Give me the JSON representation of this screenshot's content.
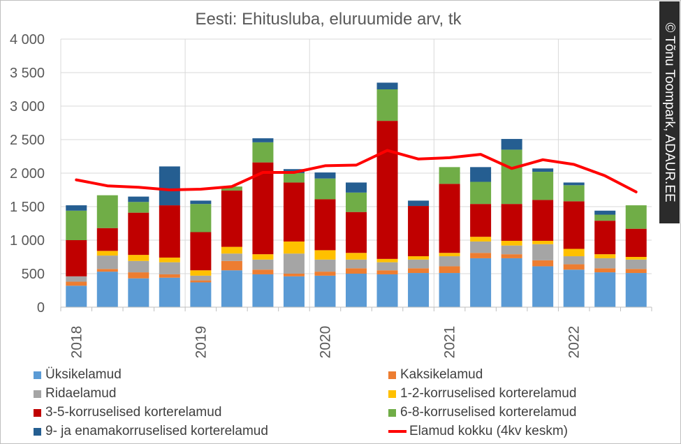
{
  "title": "Eesti: Ehitusluba, eluruumide arv, tk",
  "credit": "© Tõnu Toompark, ADAUR.EE",
  "chart_data": {
    "type": "bar",
    "stacked": true,
    "title": "Eesti: Ehitusluba, eluruumide arv, tk",
    "xlabel": "",
    "ylabel": "",
    "ylim": [
      0,
      4000
    ],
    "yticks": [
      0,
      500,
      1000,
      1500,
      2000,
      2500,
      3000,
      3500,
      4000
    ],
    "ytick_labels": [
      "0",
      "500",
      "1 000",
      "1 500",
      "2 000",
      "2 500",
      "3 000",
      "3 500",
      "4 000"
    ],
    "x_labels": [
      "2018",
      "2019",
      "2020",
      "2021",
      "2022"
    ],
    "grid": true,
    "legend_position": "bottom",
    "quarters": 19,
    "series": [
      {
        "name": "Üksikelamud",
        "color": "#5b9bd5",
        "values": [
          320,
          530,
          430,
          440,
          370,
          550,
          490,
          460,
          470,
          500,
          490,
          510,
          510,
          730,
          730,
          610,
          560,
          520,
          510
        ]
      },
      {
        "name": "Kaksikelamud",
        "color": "#ed7d31",
        "values": [
          60,
          40,
          90,
          50,
          30,
          140,
          70,
          40,
          60,
          80,
          60,
          70,
          100,
          80,
          60,
          90,
          80,
          60,
          60
        ]
      },
      {
        "name": "Ridaelamud",
        "color": "#a5a5a5",
        "values": [
          80,
          200,
          170,
          180,
          70,
          110,
          150,
          300,
          180,
          130,
          120,
          130,
          150,
          170,
          130,
          240,
          120,
          150,
          140
        ]
      },
      {
        "name": "1-2-korruselised korterelamud",
        "color": "#ffc000",
        "values": [
          0,
          70,
          90,
          70,
          80,
          100,
          80,
          180,
          140,
          100,
          50,
          50,
          50,
          70,
          70,
          50,
          110,
          60,
          40
        ]
      },
      {
        "name": "3-5-korruselised korterelamud",
        "color": "#c00000",
        "values": [
          540,
          340,
          630,
          780,
          570,
          840,
          1370,
          880,
          760,
          610,
          2060,
          750,
          1030,
          490,
          550,
          610,
          710,
          500,
          420
        ]
      },
      {
        "name": "6-8-korruselised korterelamud",
        "color": "#70ad47",
        "values": [
          440,
          490,
          160,
          0,
          420,
          60,
          300,
          140,
          310,
          290,
          470,
          0,
          250,
          330,
          810,
          420,
          240,
          90,
          350
        ]
      },
      {
        "name": "9- ja enamakorruselised korterelamud",
        "color": "#255e91",
        "values": [
          80,
          0,
          80,
          580,
          50,
          0,
          60,
          60,
          90,
          150,
          100,
          80,
          0,
          220,
          160,
          50,
          40,
          60,
          0
        ]
      }
    ],
    "line": {
      "name": "Elamud kokku (4kv keskm)",
      "color": "#ff0000",
      "values": [
        1900,
        1810,
        1790,
        1750,
        1760,
        1800,
        2010,
        2010,
        2110,
        2120,
        2340,
        2210,
        2230,
        2280,
        2070,
        2200,
        2130,
        1960,
        1720
      ]
    }
  },
  "legend": [
    {
      "label": "Üksikelamud",
      "kind": "bar",
      "color": "#5b9bd5"
    },
    {
      "label": "Kaksikelamud",
      "kind": "bar",
      "color": "#ed7d31"
    },
    {
      "label": "Ridaelamud",
      "kind": "bar",
      "color": "#a5a5a5"
    },
    {
      "label": "1-2-korruselised korterelamud",
      "kind": "bar",
      "color": "#ffc000"
    },
    {
      "label": "3-5-korruselised korterelamud",
      "kind": "bar",
      "color": "#c00000"
    },
    {
      "label": "6-8-korruselised korterelamud",
      "kind": "bar",
      "color": "#70ad47"
    },
    {
      "label": "9- ja enamakorruselised korterelamud",
      "kind": "bar",
      "color": "#255e91"
    },
    {
      "label": "Elamud kokku (4kv keskm)",
      "kind": "line",
      "color": "#ff0000"
    }
  ]
}
